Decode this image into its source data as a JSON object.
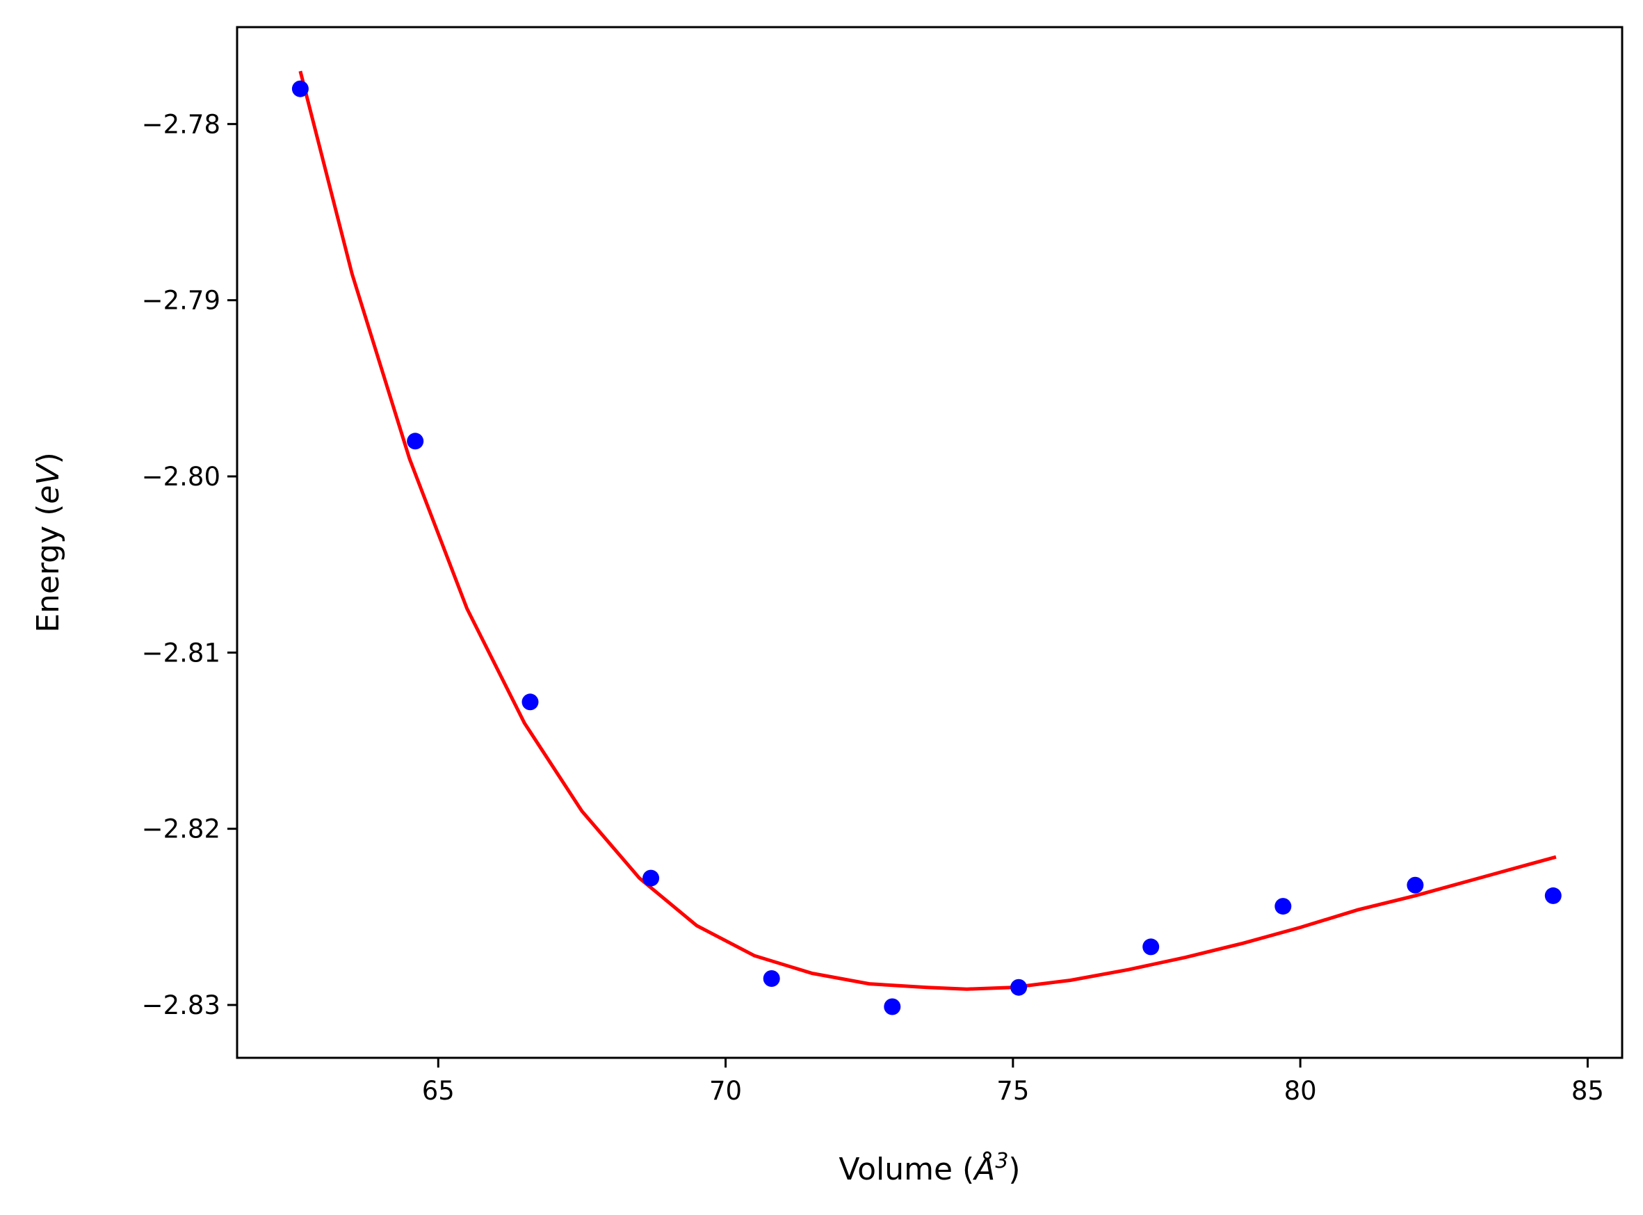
{
  "chart_data": {
    "type": "scatter",
    "title": "",
    "xlabel": "Volume (Å³)",
    "xlabel_main": "Volume (",
    "xlabel_unit": "Å",
    "xlabel_exp": "3",
    "xlabel_close": ")",
    "ylabel": "Energy (eV)",
    "ylabel_main": "Energy (",
    "ylabel_unit": "eV",
    "ylabel_close": ")",
    "xlim": [
      61.5,
      85.6
    ],
    "ylim": [
      -2.833,
      -2.7745
    ],
    "xticks": [
      65,
      70,
      75,
      80,
      85
    ],
    "xtick_labels": [
      "65",
      "70",
      "75",
      "80",
      "85"
    ],
    "yticks": [
      -2.78,
      -2.79,
      -2.8,
      -2.81,
      -2.82,
      -2.83
    ],
    "ytick_labels": [
      "−2.78",
      "−2.79",
      "−2.80",
      "−2.81",
      "−2.82",
      "−2.83"
    ],
    "grid": false,
    "series": [
      {
        "kind": "scatter",
        "color": "#0000ff",
        "x": [
          62.6,
          64.6,
          66.6,
          68.7,
          70.8,
          72.9,
          75.1,
          77.4,
          79.7,
          82.0,
          84.4
        ],
        "y": [
          -2.778,
          -2.798,
          -2.8128,
          -2.8228,
          -2.8285,
          -2.8301,
          -2.829,
          -2.8267,
          -2.8244,
          -2.8232,
          -2.8238
        ]
      },
      {
        "kind": "line",
        "color": "#ff0000",
        "x": [
          62.6,
          63.5,
          64.5,
          65.5,
          66.5,
          67.5,
          68.5,
          69.5,
          70.5,
          71.5,
          72.5,
          73.5,
          74.2,
          75.0,
          76.0,
          77.0,
          78.0,
          79.0,
          80.0,
          81.0,
          82.0,
          83.0,
          84.0,
          84.45
        ],
        "y": [
          -2.777,
          -2.7885,
          -2.799,
          -2.8075,
          -2.814,
          -2.819,
          -2.8228,
          -2.8255,
          -2.8272,
          -2.8282,
          -2.8288,
          -2.829,
          -2.8291,
          -2.829,
          -2.8286,
          -2.828,
          -2.8273,
          -2.8265,
          -2.8256,
          -2.8246,
          -2.8238,
          -2.8229,
          -2.822,
          -2.8216
        ]
      }
    ]
  }
}
